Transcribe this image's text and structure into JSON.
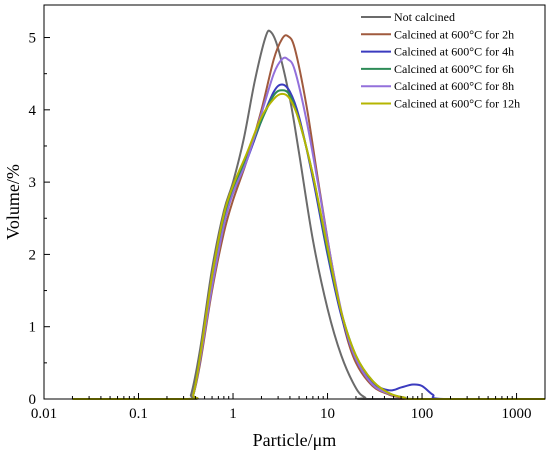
{
  "chart_data": {
    "type": "line",
    "xlabel": "Particle/μm",
    "ylabel": "Volume/%",
    "x_scale": "log",
    "xlim": [
      0.01,
      2000
    ],
    "ylim": [
      0,
      5.45
    ],
    "x_ticks": [
      0.01,
      0.1,
      1,
      10,
      100,
      1000
    ],
    "x_tick_labels": [
      "0.01",
      "0.1",
      "1",
      "10",
      "100",
      "1000"
    ],
    "y_ticks": [
      0,
      1,
      2,
      3,
      4,
      5
    ],
    "y_tick_labels": [
      "0",
      "1",
      "2",
      "3",
      "4",
      "5"
    ],
    "grid": false,
    "legend_position": "top-right",
    "series": [
      {
        "name": "Not calcined",
        "color": "#6b6b6b",
        "points": [
          [
            0.02,
            0
          ],
          [
            0.32,
            0
          ],
          [
            0.36,
            0.06
          ],
          [
            0.45,
            0.7
          ],
          [
            0.6,
            1.8
          ],
          [
            0.8,
            2.6
          ],
          [
            1.0,
            3.0
          ],
          [
            1.3,
            3.6
          ],
          [
            1.7,
            4.4
          ],
          [
            2.2,
            5.0
          ],
          [
            2.5,
            5.08
          ],
          [
            3.0,
            4.85
          ],
          [
            4.0,
            4.15
          ],
          [
            5.0,
            3.4
          ],
          [
            7.0,
            2.2
          ],
          [
            10.0,
            1.25
          ],
          [
            14.0,
            0.6
          ],
          [
            20.0,
            0.15
          ],
          [
            25.0,
            0.02
          ],
          [
            30.0,
            0
          ],
          [
            2000,
            0
          ]
        ]
      },
      {
        "name": "Calcined at 600°C for 2h",
        "color": "#a05a3e",
        "points": [
          [
            0.02,
            0
          ],
          [
            0.33,
            0
          ],
          [
            0.38,
            0.06
          ],
          [
            0.45,
            0.5
          ],
          [
            0.6,
            1.5
          ],
          [
            0.8,
            2.3
          ],
          [
            1.0,
            2.75
          ],
          [
            1.4,
            3.3
          ],
          [
            2.0,
            4.0
          ],
          [
            2.7,
            4.7
          ],
          [
            3.3,
            4.98
          ],
          [
            3.8,
            5.02
          ],
          [
            4.5,
            4.85
          ],
          [
            6.0,
            4.05
          ],
          [
            8.0,
            3.0
          ],
          [
            11.0,
            1.9
          ],
          [
            15.0,
            1.0
          ],
          [
            20.0,
            0.5
          ],
          [
            30.0,
            0.18
          ],
          [
            45.0,
            0.06
          ],
          [
            60.0,
            0.02
          ],
          [
            80.0,
            0
          ],
          [
            2000,
            0
          ]
        ]
      },
      {
        "name": "Calcined at 600°C for 4h",
        "color": "#3b3bbf",
        "points": [
          [
            0.02,
            0
          ],
          [
            0.33,
            0
          ],
          [
            0.38,
            0.06
          ],
          [
            0.45,
            0.55
          ],
          [
            0.6,
            1.6
          ],
          [
            0.8,
            2.45
          ],
          [
            1.0,
            2.85
          ],
          [
            1.4,
            3.3
          ],
          [
            2.0,
            3.85
          ],
          [
            2.7,
            4.25
          ],
          [
            3.3,
            4.35
          ],
          [
            4.0,
            4.25
          ],
          [
            5.0,
            3.9
          ],
          [
            7.0,
            3.05
          ],
          [
            10.0,
            2.0
          ],
          [
            14.0,
            1.15
          ],
          [
            20.0,
            0.55
          ],
          [
            30.0,
            0.22
          ],
          [
            45.0,
            0.12
          ],
          [
            60.0,
            0.16
          ],
          [
            80.0,
            0.2
          ],
          [
            100.0,
            0.18
          ],
          [
            130.0,
            0.06
          ],
          [
            170.0,
            0
          ],
          [
            2000,
            0
          ]
        ]
      },
      {
        "name": "Calcined at 600°C for 6h",
        "color": "#2e8b57",
        "points": [
          [
            0.02,
            0
          ],
          [
            0.33,
            0
          ],
          [
            0.38,
            0.06
          ],
          [
            0.45,
            0.6
          ],
          [
            0.6,
            1.65
          ],
          [
            0.8,
            2.5
          ],
          [
            1.0,
            2.9
          ],
          [
            1.4,
            3.35
          ],
          [
            2.0,
            3.85
          ],
          [
            2.7,
            4.2
          ],
          [
            3.3,
            4.27
          ],
          [
            4.0,
            4.2
          ],
          [
            5.0,
            3.85
          ],
          [
            7.0,
            3.1
          ],
          [
            10.0,
            2.05
          ],
          [
            14.0,
            1.2
          ],
          [
            20.0,
            0.6
          ],
          [
            30.0,
            0.25
          ],
          [
            45.0,
            0.08
          ],
          [
            65.0,
            0.02
          ],
          [
            90.0,
            0
          ],
          [
            2000,
            0
          ]
        ]
      },
      {
        "name": "Calcined at 600°C for 8h",
        "color": "#9370db",
        "points": [
          [
            0.02,
            0
          ],
          [
            0.33,
            0
          ],
          [
            0.38,
            0.06
          ],
          [
            0.45,
            0.55
          ],
          [
            0.6,
            1.55
          ],
          [
            0.8,
            2.4
          ],
          [
            1.0,
            2.85
          ],
          [
            1.4,
            3.3
          ],
          [
            2.0,
            3.95
          ],
          [
            2.7,
            4.5
          ],
          [
            3.3,
            4.7
          ],
          [
            3.8,
            4.7
          ],
          [
            4.5,
            4.55
          ],
          [
            6.0,
            3.85
          ],
          [
            8.0,
            2.95
          ],
          [
            11.0,
            1.9
          ],
          [
            15.0,
            1.05
          ],
          [
            20.0,
            0.55
          ],
          [
            30.0,
            0.2
          ],
          [
            45.0,
            0.07
          ],
          [
            65.0,
            0.02
          ],
          [
            90.0,
            0
          ],
          [
            2000,
            0
          ]
        ]
      },
      {
        "name": "Calcined at 600°C for 12h",
        "color": "#b5b500",
        "points": [
          [
            0.02,
            0
          ],
          [
            0.33,
            0
          ],
          [
            0.38,
            0.06
          ],
          [
            0.45,
            0.6
          ],
          [
            0.6,
            1.7
          ],
          [
            0.8,
            2.55
          ],
          [
            1.0,
            2.95
          ],
          [
            1.4,
            3.4
          ],
          [
            2.0,
            3.9
          ],
          [
            2.7,
            4.15
          ],
          [
            3.3,
            4.22
          ],
          [
            4.0,
            4.15
          ],
          [
            5.0,
            3.85
          ],
          [
            7.0,
            3.1
          ],
          [
            10.0,
            2.1
          ],
          [
            14.0,
            1.2
          ],
          [
            20.0,
            0.6
          ],
          [
            30.0,
            0.25
          ],
          [
            45.0,
            0.08
          ],
          [
            65.0,
            0.02
          ],
          [
            90.0,
            0
          ],
          [
            2000,
            0
          ]
        ]
      }
    ]
  }
}
